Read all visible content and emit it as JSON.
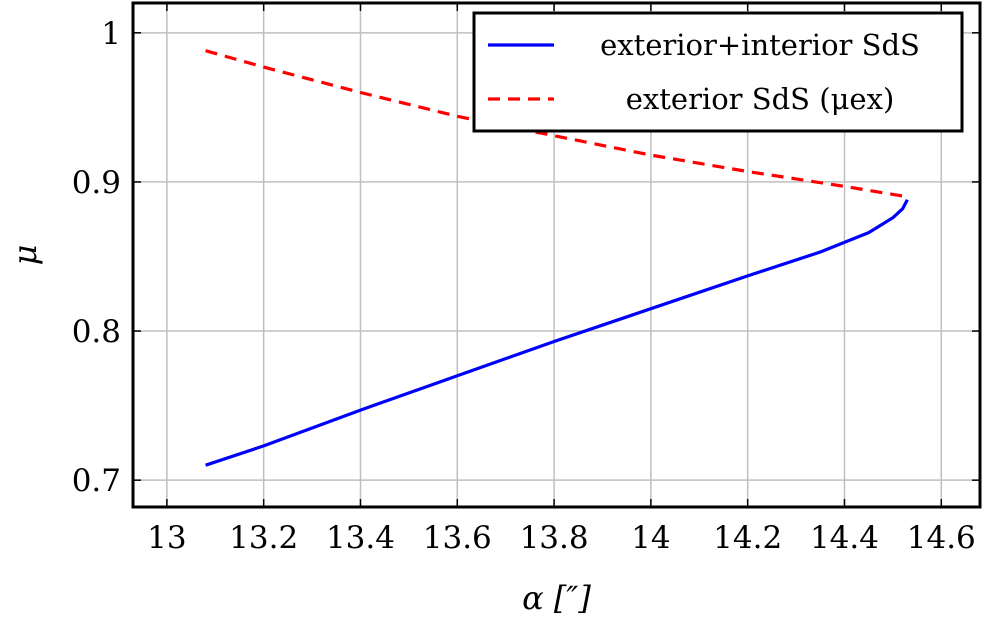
{
  "chart_data": {
    "type": "line",
    "xlabel": "α [″]",
    "ylabel": "μ",
    "xlim": [
      12.93,
      14.68
    ],
    "ylim": [
      0.682,
      1.02
    ],
    "xticks": [
      13,
      13.2,
      13.4,
      13.6,
      13.8,
      14,
      14.2,
      14.4,
      14.6
    ],
    "xtick_labels": [
      "13",
      "13.2",
      "13.4",
      "13.6",
      "13.8",
      "14",
      "14.2",
      "14.4",
      "14.6"
    ],
    "yticks": [
      0.7,
      0.8,
      0.9,
      1
    ],
    "ytick_labels": [
      "0.7",
      "0.8",
      "0.9",
      "1"
    ],
    "grid": true,
    "legend_position": "top-right",
    "series": [
      {
        "name": "exterior+interior SdS",
        "color": "#0000ff",
        "style": "solid",
        "x": [
          13.08,
          13.2,
          13.4,
          13.6,
          13.8,
          14.0,
          14.2,
          14.35,
          14.45,
          14.5,
          14.52,
          14.53
        ],
        "y": [
          0.71,
          0.723,
          0.747,
          0.77,
          0.793,
          0.815,
          0.837,
          0.853,
          0.866,
          0.876,
          0.882,
          0.888
        ]
      },
      {
        "name": "exterior SdS (μex)",
        "color": "#ff0000",
        "style": "dashed",
        "x": [
          13.08,
          13.2,
          13.4,
          13.6,
          13.8,
          14.0,
          14.2,
          14.4,
          14.53
        ],
        "y": [
          0.988,
          0.977,
          0.96,
          0.944,
          0.931,
          0.918,
          0.907,
          0.897,
          0.89
        ]
      }
    ]
  }
}
